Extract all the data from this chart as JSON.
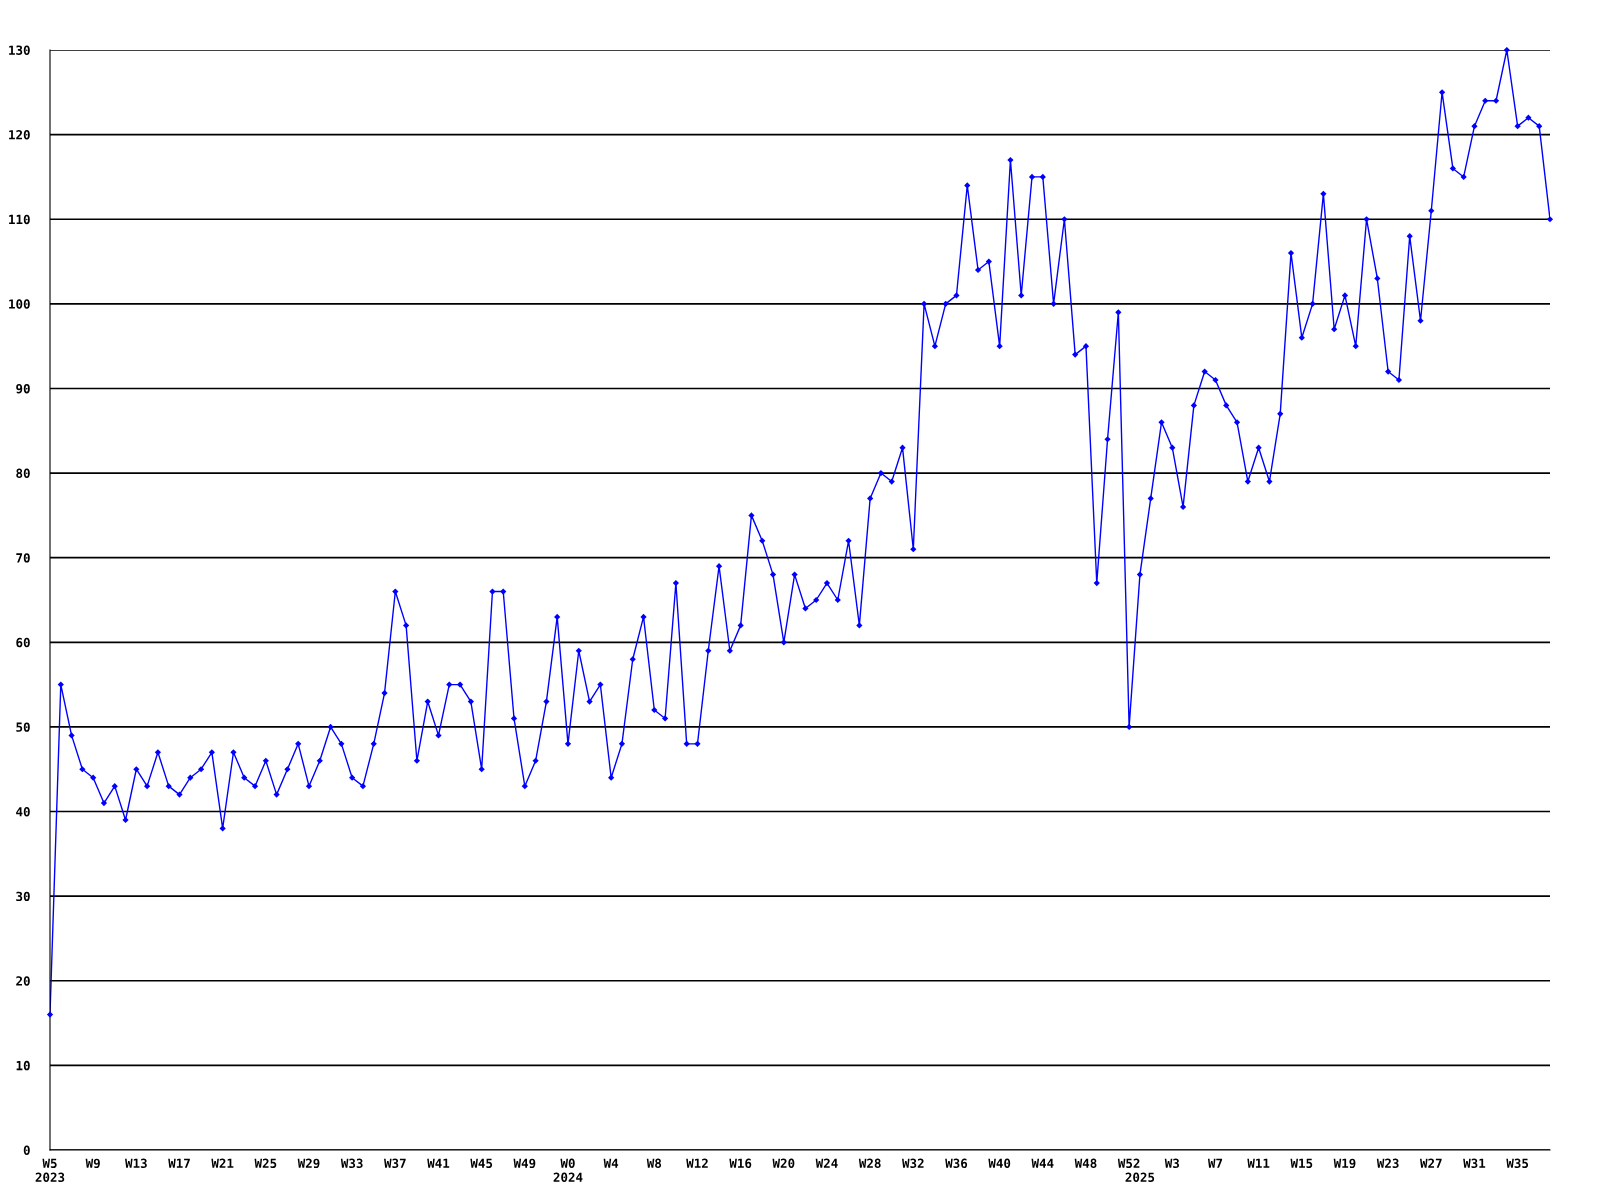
{
  "chart_data": {
    "type": "line",
    "categories": [
      "W5\n2023",
      null,
      null,
      null,
      "W9",
      null,
      null,
      null,
      "W13",
      null,
      null,
      null,
      "W17",
      null,
      null,
      null,
      "W21",
      null,
      null,
      null,
      "W25",
      null,
      null,
      null,
      "W29",
      null,
      null,
      null,
      "W33",
      null,
      null,
      null,
      "W37",
      null,
      null,
      null,
      "W41",
      null,
      null,
      null,
      "W45",
      null,
      null,
      null,
      "W49",
      null,
      null,
      null,
      "W0\n2024",
      null,
      null,
      null,
      "W4",
      null,
      null,
      null,
      "W8",
      null,
      null,
      null,
      "W12",
      null,
      null,
      null,
      "W16",
      null,
      null,
      null,
      "W20",
      null,
      null,
      null,
      "W24",
      null,
      null,
      null,
      "W28",
      null,
      null,
      null,
      "W32",
      null,
      null,
      null,
      "W36",
      null,
      null,
      null,
      "W40",
      null,
      null,
      null,
      "W44",
      null,
      null,
      null,
      "W48",
      null,
      null,
      null,
      "W52",
      "\n2025",
      null,
      null,
      "W3",
      null,
      null,
      null,
      "W7",
      null,
      null,
      null,
      "W11",
      null,
      null,
      null,
      "W15",
      null,
      null,
      null,
      "W19",
      null,
      null,
      null,
      "W23",
      null,
      null,
      null,
      "W27",
      null,
      null,
      null,
      "W31",
      null,
      null,
      null,
      "W35",
      null,
      null,
      null
    ],
    "series": [
      {
        "color": "#0000ff",
        "values": [
          16,
          55,
          49,
          45,
          44,
          41,
          43,
          39,
          45,
          43,
          47,
          43,
          42,
          44,
          45,
          47,
          38,
          47,
          44,
          43,
          46,
          42,
          45,
          48,
          43,
          46,
          50,
          48,
          44,
          43,
          48,
          54,
          66,
          62,
          46,
          53,
          49,
          55,
          55,
          53,
          45,
          66,
          66,
          51,
          43,
          46,
          53,
          63,
          48,
          59,
          53,
          55,
          44,
          48,
          58,
          63,
          52,
          51,
          67,
          48,
          48,
          59,
          69,
          59,
          62,
          75,
          72,
          68,
          60,
          68,
          64,
          65,
          67,
          65,
          72,
          62,
          77,
          80,
          79,
          83,
          71,
          100,
          95,
          100,
          101,
          114,
          104,
          105,
          95,
          117,
          101,
          115,
          115,
          100,
          110,
          94,
          95,
          67,
          84,
          99,
          50,
          68,
          77,
          86,
          83,
          76,
          88,
          92,
          91,
          88,
          86,
          79,
          83,
          79,
          87,
          106,
          96,
          100,
          113,
          97,
          101,
          95,
          110,
          103,
          92,
          91,
          108,
          98,
          111,
          125,
          116,
          115,
          121,
          124,
          124,
          130,
          121,
          122,
          121,
          110
        ]
      }
    ],
    "ylim": [
      0,
      130
    ],
    "yticks": [
      0,
      10,
      20,
      30,
      40,
      50,
      60,
      70,
      80,
      90,
      100,
      110,
      120,
      130
    ],
    "grid": "y",
    "legend": false,
    "marker": "diamond",
    "line_style": "solid"
  }
}
